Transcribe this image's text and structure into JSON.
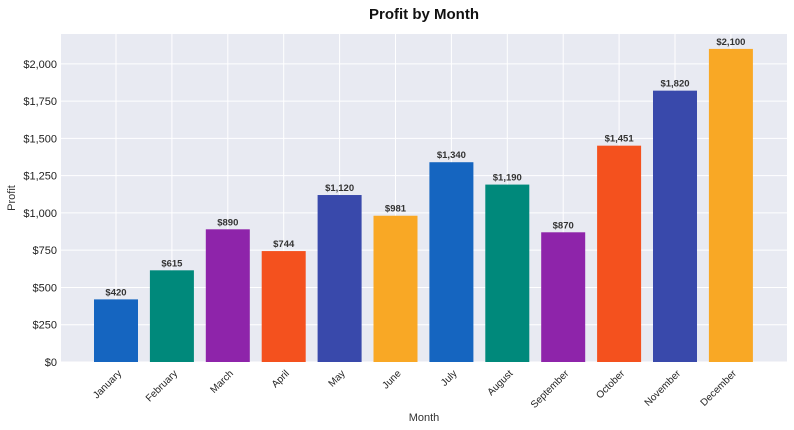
{
  "chart_data": {
    "type": "bar",
    "title": "Profit by Month",
    "xlabel": "Month",
    "ylabel": "Profit",
    "categories": [
      "January",
      "February",
      "March",
      "April",
      "May",
      "June",
      "July",
      "August",
      "September",
      "October",
      "November",
      "December"
    ],
    "values": [
      420,
      615,
      890,
      744,
      1120,
      981,
      1340,
      1190,
      870,
      1451,
      1820,
      2100
    ],
    "data_labels": [
      "$420",
      "$615",
      "$890",
      "$744",
      "$1,120",
      "$981",
      "$1,340",
      "$1,190",
      "$870",
      "$1,451",
      "$1,820",
      "$2,100"
    ],
    "colors": [
      "#1565c0",
      "#00897b",
      "#8e24aa",
      "#f4511e",
      "#3949ab",
      "#f9a825",
      "#1565c0",
      "#00897b",
      "#8e24aa",
      "#f4511e",
      "#3949ab",
      "#f9a825"
    ],
    "ylim": [
      0,
      2200
    ],
    "yticks": [
      0,
      250,
      500,
      750,
      1000,
      1250,
      1500,
      1750,
      2000
    ],
    "ytick_labels": [
      "$0",
      "$250",
      "$500",
      "$750",
      "$1,000",
      "$1,250",
      "$1,500",
      "$1,750",
      "$2,000"
    ],
    "grid": true,
    "background_color": "#e8eaf2",
    "grid_color": "#ffffff"
  }
}
